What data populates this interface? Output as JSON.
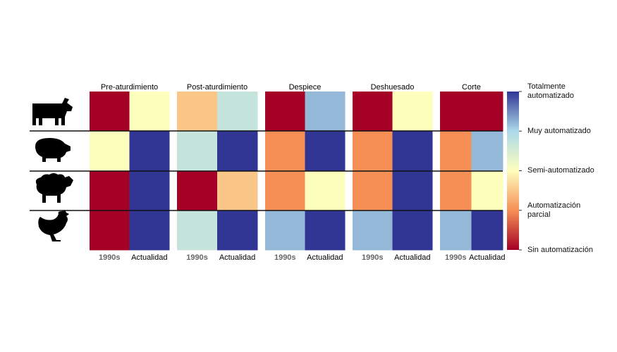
{
  "chart_data": {
    "type": "heatmap",
    "panels": [
      {
        "title": "Pre-aturdimiento",
        "columns": [
          "1990s",
          "Actualidad"
        ],
        "values": [
          [
            0,
            2
          ],
          [
            2,
            4
          ],
          [
            0,
            4
          ],
          [
            0,
            4
          ]
        ]
      },
      {
        "title": "Post-aturdimiento",
        "columns": [
          "1990s",
          "Actualidad"
        ],
        "values": [
          [
            1.5,
            2.7
          ],
          [
            2.7,
            4
          ],
          [
            0,
            1.5
          ],
          [
            2.7,
            4
          ]
        ]
      },
      {
        "title": "Despiece",
        "columns": [
          "1990s",
          "Actualidad"
        ],
        "values": [
          [
            0,
            3.2
          ],
          [
            1,
            4
          ],
          [
            1,
            2
          ],
          [
            3.2,
            4
          ]
        ]
      },
      {
        "title": "Deshuesado",
        "columns": [
          "1990s",
          "Actualidad"
        ],
        "values": [
          [
            0,
            2
          ],
          [
            1,
            4
          ],
          [
            1,
            4
          ],
          [
            3.2,
            4
          ]
        ]
      },
      {
        "title": "Corte",
        "columns": [
          "1990s",
          "Actualidad"
        ],
        "values": [
          [
            0,
            0
          ],
          [
            1,
            3.2
          ],
          [
            1,
            2
          ],
          [
            3.2,
            4
          ]
        ]
      }
    ],
    "colorbar": {
      "lim": [
        0,
        4
      ],
      "colors": [
        "#a50026",
        "#f68f55",
        "#fefebd",
        "#abd9e9",
        "#313695"
      ],
      "ticks": [
        {
          "value": 0,
          "label": "Sin automatización"
        },
        {
          "value": 1,
          "label": "Automatización parcial"
        },
        {
          "value": 2,
          "label": "Semi-automatizado"
        },
        {
          "value": 3,
          "label": "Muy automatizado"
        },
        {
          "value": 4,
          "label": "Totalmente automatizado"
        }
      ]
    }
  }
}
